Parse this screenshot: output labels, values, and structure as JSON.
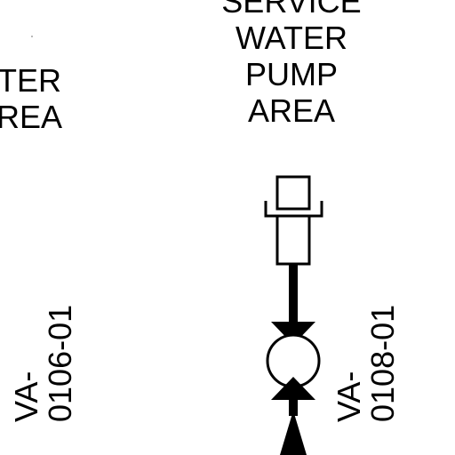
{
  "left_area": {
    "lines": [
      "TER",
      "REA"
    ]
  },
  "right_area": {
    "lines": [
      "SERVICE",
      "WATER",
      "PUMP",
      "AREA"
    ]
  },
  "valve_left": {
    "lines": [
      "VA-",
      "0106-01"
    ]
  },
  "valve_right": {
    "lines": [
      "VA-",
      "0108-01"
    ]
  },
  "colors": {
    "ink": "#000000",
    "background": "#ffffff"
  }
}
